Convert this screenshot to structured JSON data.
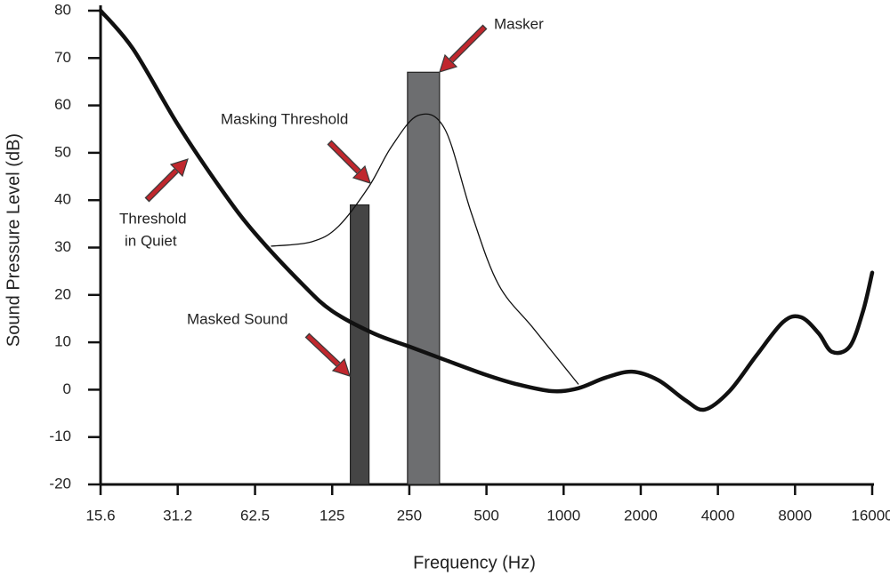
{
  "chart_data": {
    "type": "line",
    "xlabel": "Frequency (Hz)",
    "ylabel": "Sound Pressure Level (dB)",
    "xscale": "log",
    "xlim": [
      15.6,
      16000
    ],
    "ylim": [
      -20,
      80
    ],
    "xticks": [
      15.6,
      31.2,
      62.5,
      125,
      250,
      500,
      1000,
      2000,
      4000,
      8000,
      16000
    ],
    "yticks": [
      -20,
      -10,
      0,
      10,
      20,
      30,
      40,
      50,
      60,
      70,
      80
    ],
    "grid": false,
    "series": [
      {
        "color": "#111111",
        "line_width": 4.5,
        "x": [
          15.6,
          20.9,
          31.2,
          46.7,
          62.5,
          95.9,
          125,
          181,
          250,
          344,
          500,
          653,
          899,
          1140,
          1451,
          1847,
          2343,
          2982,
          3552,
          4440,
          5650,
          7190,
          8440,
          9890,
          11140,
          13070,
          14740,
          16000
        ],
        "values": [
          80,
          71.9,
          56,
          41.9,
          33,
          22.2,
          16.6,
          11.9,
          9.1,
          6.3,
          3.1,
          1.2,
          -0.3,
          0.3,
          2.5,
          3.8,
          2,
          -2.2,
          -4.2,
          -0.3,
          7.2,
          14.3,
          15.3,
          11.9,
          8,
          9.1,
          16.6,
          24.7
        ]
      },
      {
        "color": "#111111",
        "line_width": 1.3,
        "x": [
          72.4,
          103.7,
          131.8,
          174,
          213,
          271,
          344,
          437,
          557,
          766,
          1140
        ],
        "values": [
          30.3,
          31.2,
          34.4,
          42.9,
          51.3,
          57.9,
          55,
          37.2,
          22.2,
          12.8,
          1.2
        ]
      }
    ],
    "bars": {
      "x": [
        160,
        284
      ],
      "values": [
        39,
        67
      ],
      "colors": [
        "#454545",
        "#6d6e70"
      ]
    },
    "annotations": [
      {
        "text": "Masker"
      },
      {
        "text": "Masking Threshold"
      },
      {
        "lines": [
          "Threshold",
          "in Quiet"
        ]
      },
      {
        "text": "Masked Sound"
      }
    ]
  }
}
